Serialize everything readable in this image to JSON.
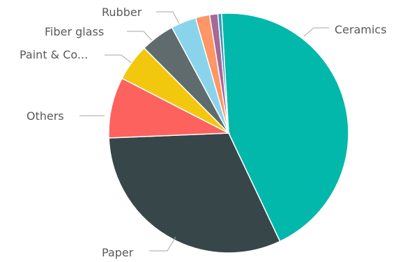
{
  "chart_data": {
    "type": "pie",
    "title": "",
    "start_angle_deg": -3.4,
    "direction": "clockwise",
    "slices": [
      {
        "label": "Ceramics",
        "value": 43.9,
        "color": "#01b8aa"
      },
      {
        "label": "Paper",
        "value": 31.4,
        "color": "#374649"
      },
      {
        "label": "Others",
        "value": 8.2,
        "color": "#fd625e"
      },
      {
        "label": "Paint & Co...",
        "value": 5.0,
        "color": "#f2c80f"
      },
      {
        "label": "Fiber glass",
        "value": 4.6,
        "color": "#5f6b6d"
      },
      {
        "label": "Rubber",
        "value": 3.4,
        "color": "#8ad4eb"
      },
      {
        "label": "",
        "value": 1.9,
        "color": "#fe9666"
      },
      {
        "label": "",
        "value": 1.1,
        "color": "#a66999"
      },
      {
        "label": "",
        "value": 0.5,
        "color": "#3599b8"
      }
    ],
    "legend": "none"
  }
}
